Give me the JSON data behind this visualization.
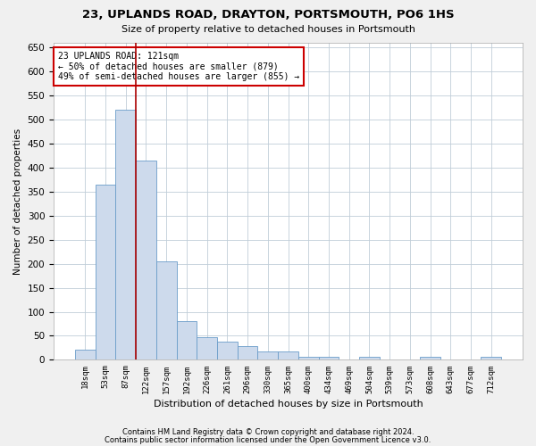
{
  "title1": "23, UPLANDS ROAD, DRAYTON, PORTSMOUTH, PO6 1HS",
  "title2": "Size of property relative to detached houses in Portsmouth",
  "xlabel": "Distribution of detached houses by size in Portsmouth",
  "ylabel": "Number of detached properties",
  "bar_color": "#cddaec",
  "bar_edge_color": "#6a9cc9",
  "vline_color": "#aa0000",
  "vline_x": 2.5,
  "annotation_text": "23 UPLANDS ROAD: 121sqm\n← 50% of detached houses are smaller (879)\n49% of semi-detached houses are larger (855) →",
  "annotation_box_color": "white",
  "annotation_box_edge": "#cc0000",
  "categories": [
    "18sqm",
    "53sqm",
    "87sqm",
    "122sqm",
    "157sqm",
    "192sqm",
    "226sqm",
    "261sqm",
    "296sqm",
    "330sqm",
    "365sqm",
    "400sqm",
    "434sqm",
    "469sqm",
    "504sqm",
    "539sqm",
    "573sqm",
    "608sqm",
    "643sqm",
    "677sqm",
    "712sqm"
  ],
  "values": [
    22,
    365,
    520,
    415,
    205,
    80,
    48,
    38,
    28,
    18,
    18,
    7,
    7,
    0,
    7,
    0,
    0,
    7,
    0,
    0,
    7
  ],
  "ylim": [
    0,
    660
  ],
  "yticks": [
    0,
    50,
    100,
    150,
    200,
    250,
    300,
    350,
    400,
    450,
    500,
    550,
    600,
    650
  ],
  "footer1": "Contains HM Land Registry data © Crown copyright and database right 2024.",
  "footer2": "Contains public sector information licensed under the Open Government Licence v3.0.",
  "bg_color": "#f0f0f0",
  "plot_bg_color": "#ffffff",
  "grid_color": "#c0cdd8"
}
